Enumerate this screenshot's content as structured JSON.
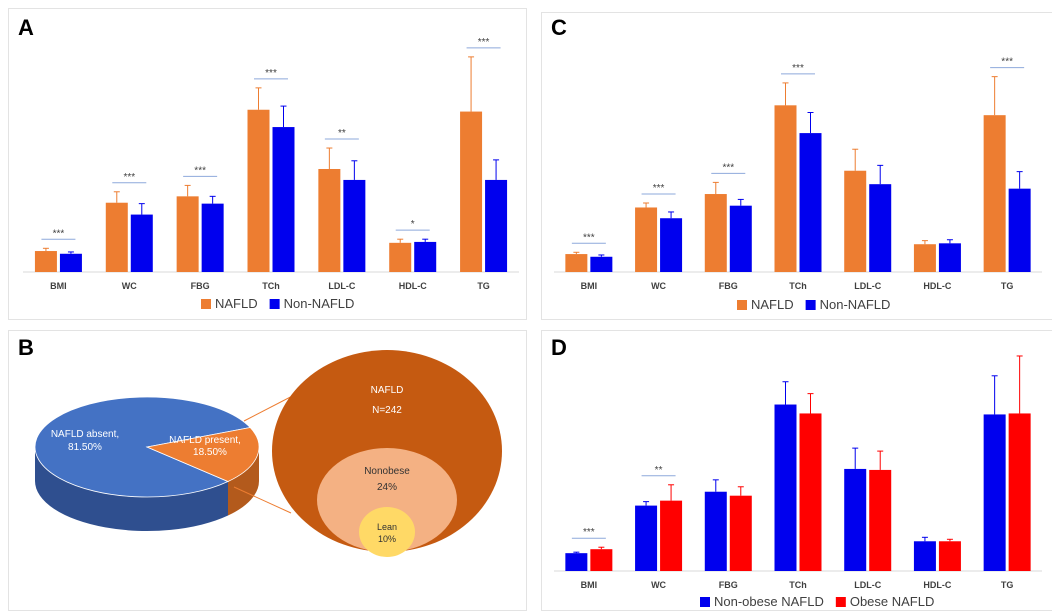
{
  "panels": {
    "A": {
      "letter": "A"
    },
    "B": {
      "letter": "B"
    },
    "C": {
      "letter": "C"
    },
    "D": {
      "letter": "D"
    }
  },
  "colors": {
    "nafld": "#ED7D31",
    "non_nafld": "#0000EE",
    "non_obese": "#0000EE",
    "obese": "#FF0000",
    "pie_blue": "#4472C4",
    "pie_orange": "#ED7D31",
    "circle_outer": "#C55A11",
    "circle_mid": "#F4B183",
    "circle_inner": "#FFD966"
  },
  "chart_data": [
    {
      "panel": "A",
      "type": "bar",
      "categories": [
        "BMI",
        "WC",
        "FBG",
        "TCh",
        "LDL-C",
        "HDL-C",
        "TG"
      ],
      "ylim": [
        0,
        260
      ],
      "legend_position": "bottom",
      "series": [
        {
          "name": "NAFLD",
          "color_key": "nafld",
          "values": [
            23,
            76,
            83,
            178,
            113,
            32,
            176
          ],
          "errors": [
            3,
            12,
            12,
            24,
            23,
            4,
            60
          ]
        },
        {
          "name": "Non-NAFLD",
          "color_key": "non_nafld",
          "values": [
            20,
            63,
            75,
            159,
            101,
            33,
            101
          ],
          "errors": [
            2,
            12,
            8,
            23,
            21,
            3,
            22
          ]
        }
      ],
      "significance": [
        "***",
        "***",
        "***",
        "***",
        "**",
        "*",
        "***"
      ]
    },
    {
      "panel": "C",
      "type": "bar",
      "categories": [
        "BMI",
        "WC",
        "FBG",
        "TCh",
        "LDL-C",
        "HDL-C",
        "TG"
      ],
      "ylim": [
        0,
        260
      ],
      "legend_position": "bottom",
      "series": [
        {
          "name": "NAFLD",
          "color_key": "nafld",
          "values": [
            20,
            72,
            87,
            186,
            113,
            31,
            175
          ],
          "errors": [
            2,
            5,
            13,
            25,
            24,
            4,
            43
          ]
        },
        {
          "name": "Non-NAFLD",
          "color_key": "non_nafld",
          "values": [
            17,
            60,
            74,
            155,
            98,
            32,
            93
          ],
          "errors": [
            2,
            7,
            7,
            23,
            21,
            4,
            19
          ]
        }
      ],
      "significance": [
        "***",
        "***",
        "***",
        "***",
        "",
        "",
        "***"
      ]
    },
    {
      "panel": "D",
      "type": "bar",
      "categories": [
        "BMI",
        "WC",
        "FBG",
        "TCh",
        "LDL-C",
        "HDL-C",
        "TG"
      ],
      "ylim": [
        0,
        220
      ],
      "legend_position": "bottom",
      "series": [
        {
          "name": "Non-obese NAFLD",
          "color_key": "non_obese",
          "values": [
            18,
            66,
            80,
            168,
            103,
            30,
            158
          ],
          "errors": [
            1,
            4,
            12,
            23,
            21,
            4,
            39
          ]
        },
        {
          "name": "Obese NAFLD",
          "color_key": "obese",
          "values": [
            22,
            71,
            76,
            159,
            102,
            30,
            159
          ],
          "errors": [
            2,
            16,
            9,
            20,
            19,
            2,
            58
          ]
        }
      ],
      "significance": [
        "***",
        "**",
        "",
        "",
        "",
        "",
        ""
      ]
    },
    {
      "panel": "B",
      "type": "pie",
      "slices": [
        {
          "label": "NAFLD absent,",
          "percent_label": "81.50%",
          "value": 81.5,
          "color_key": "pie_blue"
        },
        {
          "label": "NAFLD present,",
          "percent_label": "18.50%",
          "value": 18.5,
          "color_key": "pie_orange"
        }
      ],
      "breakdown": {
        "outer": {
          "title": "NAFLD",
          "subtitle": "N=242"
        },
        "middle": {
          "title": "Nonobese",
          "subtitle": "24%",
          "percent": 24
        },
        "inner": {
          "title": "Lean",
          "subtitle": "10%",
          "percent": 10
        }
      }
    }
  ]
}
